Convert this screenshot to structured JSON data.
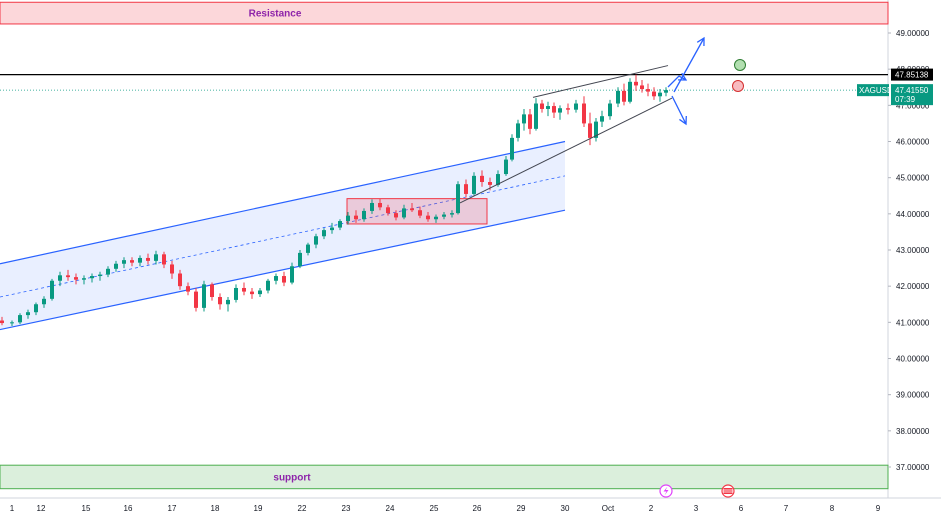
{
  "chart_data": {
    "type": "candlestick",
    "symbol": "XAGUSD",
    "last_price": "47.41550",
    "countdown": "07:39",
    "level_price": "47.85138",
    "y_ticks": [
      "49.00000",
      "48.00000",
      "47.00000",
      "46.00000",
      "45.00000",
      "44.00000",
      "43.00000",
      "42.00000",
      "41.00000",
      "40.00000",
      "39.00000",
      "38.00000",
      "37.00000"
    ],
    "x_ticks": [
      "1",
      "12",
      "15",
      "16",
      "17",
      "18",
      "19",
      "22",
      "23",
      "24",
      "25",
      "26",
      "29",
      "30",
      "Oct",
      "2",
      "3",
      "6",
      "7",
      "8",
      "9"
    ],
    "ylim": [
      35.9,
      49.9
    ],
    "zones": {
      "resistance": {
        "label": "Resistance",
        "from": 49.25,
        "to": 49.85
      },
      "support": {
        "label": "support",
        "from": 36.4,
        "to": 37.05
      }
    },
    "levels": {
      "horizontal": 47.85,
      "current": 47.42
    },
    "channel": {
      "upper": [
        [
          0,
          42.62
        ],
        [
          565,
          46.0
        ]
      ],
      "lower": [
        [
          0,
          40.8
        ],
        [
          565,
          44.1
        ]
      ],
      "mid": [
        [
          0,
          41.7
        ],
        [
          565,
          45.05
        ]
      ]
    },
    "wedge": {
      "upper": [
        [
          533,
          47.22
        ],
        [
          668,
          48.1
        ]
      ],
      "lower": [
        [
          460,
          44.3
        ],
        [
          672,
          47.2
        ]
      ]
    },
    "box": {
      "x": [
        347,
        487
      ],
      "y": [
        43.72,
        44.42
      ]
    },
    "series": [
      {
        "values": [
          [
            0,
            41.05,
            41.15,
            40.92,
            40.98
          ],
          [
            10,
            40.98,
            41.05,
            40.9,
            41.0
          ],
          [
            18,
            41.0,
            41.25,
            40.95,
            41.2
          ],
          [
            26,
            41.2,
            41.35,
            41.1,
            41.28
          ],
          [
            34,
            41.28,
            41.55,
            41.2,
            41.5
          ],
          [
            42,
            41.5,
            41.72,
            41.4,
            41.65
          ],
          [
            50,
            41.65,
            42.2,
            41.6,
            42.15
          ],
          [
            58,
            42.15,
            42.4,
            42.0,
            42.3
          ],
          [
            66,
            42.3,
            42.45,
            42.15,
            42.25
          ],
          [
            74,
            42.25,
            42.35,
            42.05,
            42.18
          ],
          [
            82,
            42.18,
            42.3,
            42.05,
            42.22
          ],
          [
            90,
            42.22,
            42.35,
            42.1,
            42.28
          ],
          [
            98,
            42.28,
            42.4,
            42.15,
            42.32
          ],
          [
            106,
            42.32,
            42.55,
            42.25,
            42.48
          ],
          [
            114,
            42.48,
            42.7,
            42.4,
            42.62
          ],
          [
            122,
            42.62,
            42.8,
            42.5,
            42.72
          ],
          [
            130,
            42.72,
            42.8,
            42.55,
            42.65
          ],
          [
            138,
            42.65,
            42.85,
            42.55,
            42.78
          ],
          [
            146,
            42.78,
            42.9,
            42.6,
            42.7
          ],
          [
            154,
            42.7,
            42.98,
            42.6,
            42.88
          ],
          [
            162,
            42.88,
            42.95,
            42.5,
            42.6
          ],
          [
            170,
            42.6,
            42.7,
            42.2,
            42.35
          ],
          [
            178,
            42.35,
            42.45,
            41.9,
            42.0
          ],
          [
            186,
            42.0,
            42.1,
            41.75,
            41.85
          ],
          [
            194,
            41.85,
            41.95,
            41.3,
            41.4
          ],
          [
            202,
            41.4,
            42.15,
            41.3,
            42.05
          ],
          [
            210,
            42.05,
            42.1,
            41.6,
            41.7
          ],
          [
            218,
            41.7,
            41.8,
            41.35,
            41.5
          ],
          [
            226,
            41.5,
            41.7,
            41.3,
            41.62
          ],
          [
            234,
            41.62,
            42.05,
            41.55,
            41.95
          ],
          [
            242,
            41.95,
            42.1,
            41.75,
            41.85
          ],
          [
            250,
            41.85,
            41.95,
            41.65,
            41.78
          ],
          [
            258,
            41.78,
            41.95,
            41.7,
            41.88
          ],
          [
            266,
            41.88,
            42.2,
            41.8,
            42.15
          ],
          [
            274,
            42.15,
            42.35,
            42.05,
            42.28
          ],
          [
            282,
            42.28,
            42.4,
            42.0,
            42.1
          ],
          [
            290,
            42.1,
            42.65,
            42.05,
            42.55
          ],
          [
            298,
            42.55,
            43.0,
            42.5,
            42.92
          ],
          [
            306,
            42.92,
            43.2,
            42.85,
            43.15
          ],
          [
            314,
            43.15,
            43.45,
            43.05,
            43.38
          ],
          [
            322,
            43.38,
            43.6,
            43.3,
            43.55
          ],
          [
            330,
            43.55,
            43.75,
            43.45,
            43.62
          ],
          [
            338,
            43.62,
            43.85,
            43.55,
            43.8
          ],
          [
            346,
            43.8,
            44.05,
            43.7,
            43.95
          ],
          [
            354,
            43.95,
            44.1,
            43.75,
            43.85
          ],
          [
            362,
            43.85,
            44.15,
            43.78,
            44.08
          ],
          [
            370,
            44.08,
            44.4,
            44.0,
            44.3
          ],
          [
            378,
            44.3,
            44.42,
            44.1,
            44.18
          ],
          [
            386,
            44.18,
            44.25,
            43.95,
            44.02
          ],
          [
            394,
            44.02,
            44.1,
            43.82,
            43.9
          ],
          [
            402,
            43.9,
            44.25,
            43.85,
            44.15
          ],
          [
            410,
            44.15,
            44.3,
            44.05,
            44.1
          ],
          [
            418,
            44.1,
            44.2,
            43.88,
            43.95
          ],
          [
            426,
            43.95,
            44.05,
            43.78,
            43.85
          ],
          [
            434,
            43.85,
            43.98,
            43.75,
            43.92
          ],
          [
            442,
            43.92,
            44.05,
            43.85,
            43.98
          ],
          [
            450,
            43.98,
            44.1,
            43.9,
            44.02
          ],
          [
            456,
            44.02,
            44.9,
            43.98,
            44.82
          ],
          [
            464,
            44.82,
            44.95,
            44.45,
            44.55
          ],
          [
            472,
            44.55,
            45.15,
            44.5,
            45.05
          ],
          [
            480,
            45.05,
            45.2,
            44.75,
            44.88
          ],
          [
            488,
            44.88,
            45.0,
            44.65,
            44.8
          ],
          [
            496,
            44.8,
            45.2,
            44.75,
            45.1
          ],
          [
            504,
            45.1,
            45.6,
            45.05,
            45.5
          ],
          [
            510,
            45.5,
            46.2,
            45.45,
            46.1
          ],
          [
            516,
            46.1,
            46.6,
            46.0,
            46.5
          ],
          [
            522,
            46.5,
            46.9,
            46.3,
            46.75
          ],
          [
            528,
            46.75,
            46.9,
            46.2,
            46.35
          ],
          [
            534,
            46.35,
            47.2,
            46.3,
            47.05
          ],
          [
            540,
            47.05,
            47.15,
            46.8,
            46.9
          ],
          [
            546,
            46.9,
            47.1,
            46.7,
            46.98
          ],
          [
            552,
            46.98,
            47.08,
            46.65,
            46.8
          ],
          [
            558,
            46.8,
            47.0,
            46.6,
            46.92
          ],
          [
            566,
            46.92,
            47.05,
            46.75,
            46.88
          ],
          [
            574,
            46.88,
            47.15,
            46.8,
            47.05
          ],
          [
            582,
            47.05,
            47.25,
            46.4,
            46.5
          ],
          [
            588,
            46.5,
            46.8,
            45.9,
            46.1
          ],
          [
            594,
            46.1,
            46.65,
            46.0,
            46.55
          ],
          [
            600,
            46.55,
            46.85,
            46.4,
            46.7
          ],
          [
            608,
            46.7,
            47.15,
            46.6,
            47.05
          ],
          [
            616,
            47.05,
            47.5,
            46.95,
            47.4
          ],
          [
            622,
            47.4,
            47.6,
            47.0,
            47.1
          ],
          [
            628,
            47.1,
            47.75,
            47.05,
            47.65
          ],
          [
            634,
            47.65,
            47.85,
            47.4,
            47.55
          ],
          [
            640,
            47.55,
            47.7,
            47.35,
            47.45
          ],
          [
            646,
            47.45,
            47.6,
            47.25,
            47.38
          ],
          [
            652,
            47.38,
            47.5,
            47.15,
            47.25
          ],
          [
            658,
            47.25,
            47.45,
            47.1,
            47.35
          ],
          [
            664,
            47.35,
            47.5,
            47.25,
            47.42
          ]
        ]
      }
    ]
  }
}
